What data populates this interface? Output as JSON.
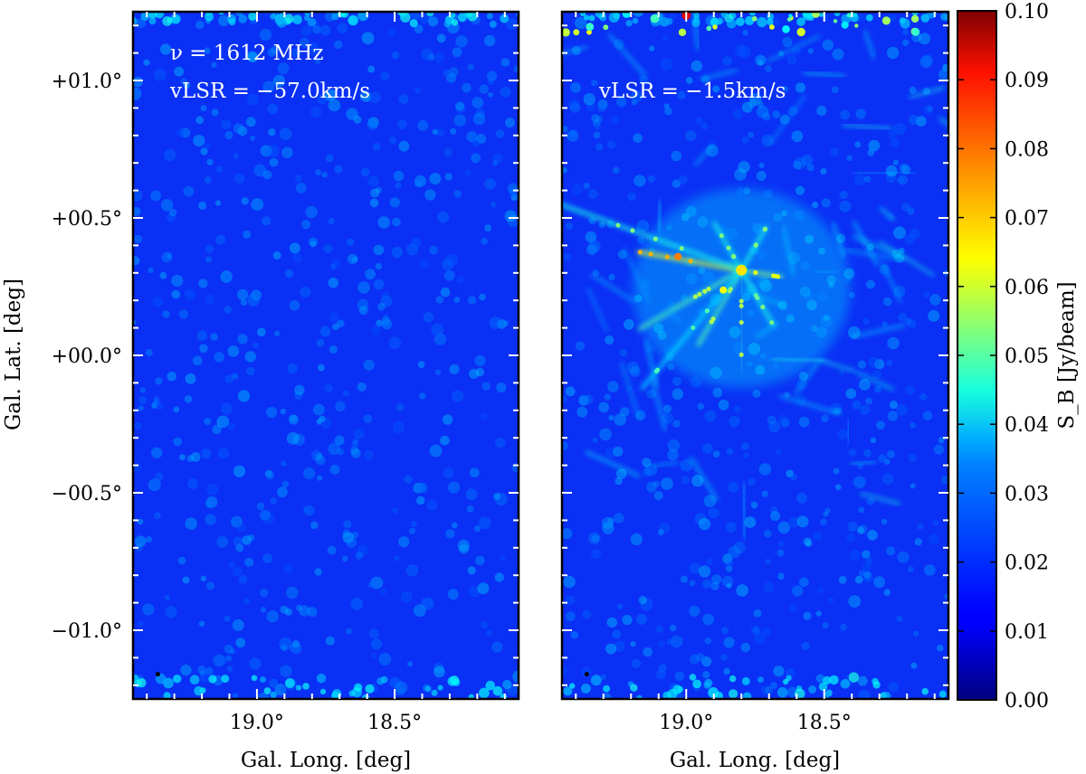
{
  "chart_data": [
    {
      "type": "heatmap",
      "panel": "left",
      "annotations": [
        "ν = 1612 MHz",
        "vLSR = −57.0km/s"
      ],
      "xlabel": "Gal. Long. [deg]",
      "ylabel": "Gal. Lat. [deg]",
      "xlim": [
        19.45,
        18.05
      ],
      "ylim": [
        -1.25,
        1.25
      ],
      "x_ticks": [
        19.0,
        18.5
      ],
      "x_tick_labels": [
        "19.0°",
        "18.5°"
      ],
      "y_ticks": [
        1.0,
        0.5,
        0.0,
        -0.5,
        -1.0
      ],
      "y_tick_labels": [
        "+01.0°",
        "+00.5°",
        "+00.0°",
        "−00.5°",
        "−01.0°"
      ],
      "background_level": 0.02,
      "features": "uniform noise at ~0.02–0.03 Jy/beam; slightly brighter bands at the top and bottom edges",
      "beam_marker": {
        "l": 19.36,
        "b": -1.16
      }
    },
    {
      "type": "heatmap",
      "panel": "right",
      "annotations": [
        "vLSR = −1.5km/s"
      ],
      "xlabel": "Gal. Long. [deg]",
      "xlim": [
        19.45,
        18.05
      ],
      "ylim": [
        -1.25,
        1.25
      ],
      "x_ticks": [
        19.0,
        18.5
      ],
      "x_tick_labels": [
        "19.0°",
        "18.5°"
      ],
      "background_level": 0.02,
      "features": "sidelobe star pattern around a bright source near l=18.80°, b=+0.31°; filamentary emission ~0.03–0.04 Jy/beam across the upper half; bright spots along the top edge up to ~0.09 Jy/beam",
      "bright_source": {
        "l": 18.8,
        "b": 0.31,
        "peak": 0.065
      },
      "beam_marker": {
        "l": 19.36,
        "b": -1.16
      }
    }
  ],
  "colorbar": {
    "label": "S_B [Jy/beam]",
    "colormap": "jet",
    "vmin": 0.0,
    "vmax": 0.1,
    "ticks": [
      0.0,
      0.01,
      0.02,
      0.03,
      0.04,
      0.05,
      0.06,
      0.07,
      0.08,
      0.09,
      0.1
    ],
    "tick_labels": [
      "0.00",
      "0.01",
      "0.02",
      "0.03",
      "0.04",
      "0.05",
      "0.06",
      "0.07",
      "0.08",
      "0.09",
      "0.10"
    ]
  }
}
